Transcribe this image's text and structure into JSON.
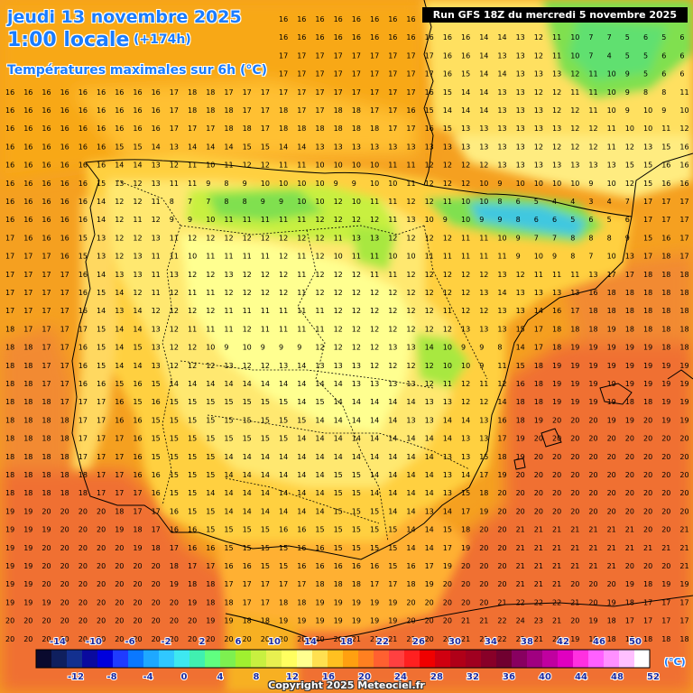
{
  "header": {
    "date": "jeudi 13 novembre 2025",
    "time": "1:00 locale",
    "lead": "(+174h)",
    "subtitle": "Températures maximales sur 6h (°C)",
    "run": "Run GFS 18Z du mercredi 5 novembre 2025"
  },
  "footer": {
    "copyright": "Copyright 2025 Meteociel.fr"
  },
  "legend": {
    "unit": "(°C)",
    "labels_top": [
      "-14",
      "-10",
      "-6",
      "-2",
      "2",
      "6",
      "10",
      "14",
      "18",
      "22",
      "26",
      "30",
      "34",
      "38",
      "42",
      "46",
      "50"
    ],
    "labels_bottom": [
      "-12",
      "-8",
      "-4",
      "0",
      "4",
      "8",
      "12",
      "16",
      "20",
      "24",
      "28",
      "32",
      "36",
      "40",
      "44",
      "48",
      "52"
    ],
    "colors": [
      "#0a0a2e",
      "#0f1f5e",
      "#13308f",
      "#0a0a9e",
      "#0000dd",
      "#1f3bff",
      "#0a78ff",
      "#1ea8ff",
      "#30c8ff",
      "#3ee8f0",
      "#40f0b0",
      "#60ff80",
      "#7df050",
      "#a0f030",
      "#c8f040",
      "#e8f050",
      "#ffff60",
      "#ffff90",
      "#ffe050",
      "#ffc020",
      "#ffa010",
      "#ff8020",
      "#ff6030",
      "#ff4040",
      "#ff2020",
      "#f00000",
      "#d00010",
      "#b00018",
      "#a00020",
      "#880028",
      "#700030",
      "#880060",
      "#a00080",
      "#c000a0",
      "#e000c0",
      "#ff30e0",
      "#ff60ff",
      "#ff90ff",
      "#ffc0ff",
      "#ffffff"
    ]
  },
  "colors": {
    "title": "#1a7cff",
    "sea_warm": "#f07030",
    "sea_mild": "#f5a020",
    "land_mild": "#ffd040",
    "land_cool": "#ffff90",
    "land_cold": "#80e050",
    "peaks": "#40c8e0",
    "border": "#000000"
  },
  "map": {
    "grid_rows": [
      "16 16 16 16 16 16 16 16 16 16 16 16 16 16 16 16 16 16 16 16 16 16 16 16 17 14 14 13 13 12 10 9 7 7 6 7 6 7",
      "16 16 16 16 16 16 16 16 16 17 17 17 17 17 17 16 16 16 16 16 16 16 16 16 16 16 14 14 13 12 11 10 7 7 5 6 5 6",
      "16 16 16 16 16 16 16 16 16 16 16 17 17 17 17 17 17 17 17 17 17 17 17 17 16 16 14 13 13 12 11 10 7 4 5 5 6 6",
      "16 16 16 16 16 16 16 16 16 17 17 17 17 17 17 17 17 17 17 17 17 17 17 17 16 15 14 14 13 13 13 12 11 10 9 5 6 6",
      "16 16 16 16 16 16 16 16 16 17 18 18 17 17 17 17 17 17 17 17 17 17 17 16 15 14 14 13 13 12 12 11 11 10 9 8 8 11",
      "16 16 16 16 16 16 16 16 16 17 18 18 18 17 17 18 17 17 18 18 17 17 16 15 14 14 14 13 13 13 12 12 11 10 9 10 9 10",
      "16 16 16 16 16 16 16 16 16 17 17 17 18 18 17 18 18 18 18 18 18 17 17 16 15 13 13 13 13 13 13 12 12 11 10 10 11 12",
      "16 16 16 16 16 16 15 15 14 13 14 14 14 15 15 14 14 13 13 13 13 13 13 13 13 13 13 13 13 12 12 12 12 11 12 13 15 16",
      "16 16 16 16 16 16 14 14 13 12 11 10 11 12 12 11 11 10 10 10 10 11 11 12 12 12 12 13 13 13 13 13 13 13 15 15 16 16",
      "16 16 16 16 16 15 13 12 13 11 11 9 8 9 10 10 10 10 9 9 10 10 11 12 12 12 10 9 10 10 10 10 9 10 12 15 16 16",
      "16 16 16 16 16 14 12 12 11 8 7 7 8 8 9 9 10 10 12 10 11 11 12 12 11 10 10 8 6 5 4 4 3 4 7 17 17 17",
      "16 16 16 16 16 14 12 11 12 9 9 10 11 11 11 11 11 12 12 12 12 11 13 10 9 10 9 9 8 6 6 5 6 5 6 17 17 17",
      "17 16 16 16 15 13 12 12 13 11 12 12 12 12 12 12 12 12 11 13 13 12 12 12 12 11 11 10 9 7 7 8 8 8 9 15 16 17",
      "17 17 17 16 15 13 12 13 11 11 10 11 11 11 11 12 11 12 10 11 11 10 10 11 11 11 11 11 9 10 9 8 7 10 13 17 18 17",
      "17 17 17 17 16 14 13 13 11 13 12 12 13 12 12 12 11 12 12 12 11 11 12 12 12 12 12 13 12 11 11 11 13 17 17 18 18 18",
      "17 17 17 17 16 15 14 12 11 12 11 11 12 12 12 12 11 12 12 12 12 12 12 12 12 12 13 14 13 13 13 13 16 18 18 18 18 18",
      "17 17 17 17 16 14 13 14 12 12 12 12 11 11 11 11 11 11 12 12 12 12 12 12 11 12 12 13 13 14 16 17 18 18 18 18 18 18",
      "18 17 17 17 17 15 14 14 13 12 11 11 11 12 11 11 11 11 12 12 12 12 12 12 12 13 13 13 15 17 18 18 18 19 18 18 18 18",
      "18 18 17 17 16 15 14 15 13 12 12 10 9 10 9 9 9 12 12 12 12 13 13 14 10 9 9 8 14 17 18 19 19 19 19 19 18 18",
      "18 18 17 17 16 15 14 14 13 12 12 12 13 12 12 13 14 13 13 13 12 12 12 12 10 10 9 11 15 18 19 19 19 19 19 19 19 19",
      "18 18 17 17 16 16 15 16 15 14 14 14 14 14 14 14 14 14 14 13 13 13 13 12 11 12 11 12 16 18 19 19 19 19 19 19 19 19",
      "18 18 18 17 17 17 16 15 16 15 15 15 15 15 15 15 14 15 14 14 14 14 14 13 13 12 12 14 18 18 19 19 19 19 18 18 19 19",
      "18 18 18 18 17 17 16 16 15 15 15 15 15 15 15 15 15 14 14 14 14 14 13 13 14 14 13 16 18 19 20 20 20 19 19 20 19 19",
      "18 18 18 18 17 17 17 16 15 15 15 15 15 15 15 15 14 14 14 14 14 14 14 14 14 13 13 17 19 20 20 20 20 20 20 20 20 20",
      "18 18 18 18 17 17 17 16 15 15 15 15 14 14 14 14 14 14 14 14 14 14 14 14 13 13 15 18 19 20 20 20 20 20 20 20 20 20",
      "18 18 18 18 18 17 17 16 16 15 15 15 14 14 14 14 14 14 15 15 14 14 14 14 13 14 17 19 20 20 20 20 20 20 20 20 20 20",
      "18 18 18 18 18 17 17 17 16 15 15 14 14 14 14 14 14 14 15 15 14 14 14 14 13 15 18 20 20 20 20 20 20 20 20 20 20 20",
      "19 19 20 20 20 20 18 17 17 16 15 15 14 14 14 14 14 14 15 15 15 14 14 13 14 17 19 20 20 20 20 20 20 20 20 20 20 20",
      "19 19 19 20 20 20 19 18 17 16 16 15 15 15 15 16 16 15 15 15 15 15 14 14 15 18 20 20 21 21 21 21 21 21 21 20 20 21",
      "19 19 20 20 20 20 20 19 18 17 16 16 15 15 15 15 16 16 15 15 15 15 14 14 17 19 20 20 21 21 21 21 21 21 21 21 21 21",
      "19 19 20 20 20 20 20 20 20 18 17 17 16 16 15 15 16 16 16 16 16 15 16 17 19 20 20 20 21 21 21 21 21 21 20 20 20 21",
      "19 19 20 20 20 20 20 20 20 19 18 18 17 17 17 17 17 18 18 18 17 17 18 19 20 20 20 20 21 21 21 20 20 20 19 18 19 19",
      "19 19 19 20 20 20 20 20 20 20 19 18 18 17 17 18 18 19 19 19 19 19 20 20 20 20 20 21 22 22 22 21 20 19 18 17 17 17",
      "20 20 20 20 20 20 20 20 20 20 20 19 19 18 18 19 19 19 19 19 19 19 20 20 20 21 21 22 24 23 21 20 19 18 17 17 17 17",
      "20 20 20 20 20 20 20 20 20 20 20 20 20 20 20 20 20 20 20 21 21 21 21 20 20 21 21 22 22 21 20 19 18 18 18 18 18 18",
      "20 20 20 20 20 20 20 20 20 20 20 20 20 20 20 20 20 20 20 20 20 20 20 20 20 20 20 20 21 20 20 19 19 18 18 18 18 18",
      "20 20 20 20 20 20 20 20 20 20 21 20 20 20 20 20 20 20 20 20 20 20 20 20 20 20 20 20 20 20 20 20 20 19 19 18 18 18",
      "20 20 21 21 20 20 20 20 20 20 21 21 21 22 23 24 24 24 24 24 24 24 20 20 20 20 20 20 20 20 20 20 20 20 20 20 20 20"
    ]
  }
}
